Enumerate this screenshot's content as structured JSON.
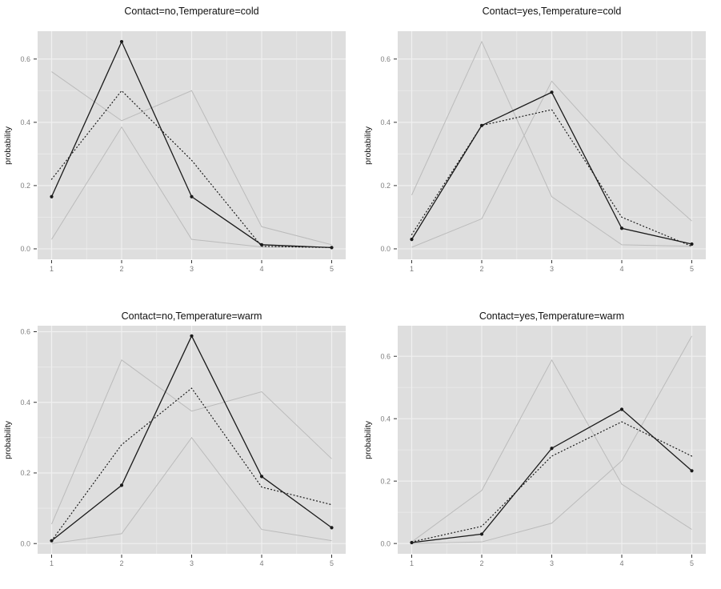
{
  "figure": {
    "background": "#ffffff",
    "rows": 2,
    "cols": 2,
    "description": "2x2 grid of ggplot-style probability line charts"
  },
  "colors": {
    "panel_bg": "#DEDEDE",
    "grid_major": "#F0F0F0",
    "grid_minor": "#E9E9E9",
    "axis_text": "#7E7E7E",
    "tick_mark": "#333333",
    "title_text": "#111111",
    "line_black": "#1A1A1A",
    "line_gray": "#BBBBBB"
  },
  "chart_data": [
    {
      "type": "line",
      "title": "Contact=no,Temperature=cold",
      "ylabel": "probability",
      "x": [
        1,
        2,
        3,
        4,
        5
      ],
      "xtick_labels": [
        "1",
        "2",
        "3",
        "4",
        "5"
      ],
      "ytick_values": [
        0.0,
        0.2,
        0.4,
        0.6
      ],
      "ytick_labels": [
        "0.0",
        "0.2",
        "0.4",
        "0.6"
      ],
      "ytick_minor": [
        0.1,
        0.3,
        0.5
      ],
      "xtick_minor": [
        1.5,
        2.5,
        3.5,
        4.5
      ],
      "xlim": [
        0.8,
        5.2
      ],
      "ylim": [
        -0.033,
        0.688
      ],
      "grid": true,
      "legend": "none",
      "series": [
        {
          "name": "individual-gray-1",
          "style": "gray",
          "values": [
            0.56,
            0.405,
            0.5,
            0.07,
            0.013
          ]
        },
        {
          "name": "individual-gray-2",
          "style": "gray",
          "values": [
            0.03,
            0.385,
            0.03,
            0.006,
            0.005
          ]
        },
        {
          "name": "dotted-line",
          "style": "dotted",
          "values": [
            0.22,
            0.5,
            0.28,
            0.008,
            0.004
          ]
        },
        {
          "name": "solid-line-with-points",
          "style": "solid-points",
          "values": [
            0.165,
            0.655,
            0.165,
            0.013,
            0.004
          ]
        }
      ]
    },
    {
      "type": "line",
      "title": "Contact=yes,Temperature=cold",
      "ylabel": "probability",
      "x": [
        1,
        2,
        3,
        4,
        5
      ],
      "xtick_labels": [
        "1",
        "2",
        "3",
        "4",
        "5"
      ],
      "ytick_values": [
        0.0,
        0.2,
        0.4,
        0.6
      ],
      "ytick_labels": [
        "0.0",
        "0.2",
        "0.4",
        "0.6"
      ],
      "ytick_minor": [
        0.1,
        0.3,
        0.5
      ],
      "xtick_minor": [
        1.5,
        2.5,
        3.5,
        4.5
      ],
      "xlim": [
        0.8,
        5.2
      ],
      "ylim": [
        -0.033,
        0.688
      ],
      "grid": true,
      "legend": "none",
      "series": [
        {
          "name": "individual-gray-1",
          "style": "gray",
          "values": [
            0.17,
            0.655,
            0.165,
            0.013,
            0.008
          ]
        },
        {
          "name": "individual-gray-2",
          "style": "gray",
          "values": [
            0.005,
            0.095,
            0.53,
            0.285,
            0.088
          ]
        },
        {
          "name": "dotted-line",
          "style": "dotted",
          "values": [
            0.045,
            0.39,
            0.44,
            0.1,
            0.008
          ]
        },
        {
          "name": "solid-line-with-points",
          "style": "solid-points",
          "values": [
            0.03,
            0.39,
            0.495,
            0.065,
            0.015
          ]
        }
      ]
    },
    {
      "type": "line",
      "title": "Contact=no,Temperature=warm",
      "ylabel": "probability",
      "x": [
        1,
        2,
        3,
        4,
        5
      ],
      "xtick_labels": [
        "1",
        "2",
        "3",
        "4",
        "5"
      ],
      "ytick_values": [
        0.0,
        0.2,
        0.4,
        0.6
      ],
      "ytick_labels": [
        "0.0",
        "0.2",
        "0.4",
        "0.6"
      ],
      "ytick_minor": [
        0.1,
        0.3,
        0.5
      ],
      "xtick_minor": [
        1.5,
        2.5,
        3.5,
        4.5
      ],
      "xlim": [
        0.8,
        5.2
      ],
      "ylim": [
        -0.029,
        0.617
      ],
      "grid": true,
      "legend": "none",
      "series": [
        {
          "name": "individual-gray-1",
          "style": "gray",
          "values": [
            0.055,
            0.52,
            0.375,
            0.43,
            0.24
          ]
        },
        {
          "name": "individual-gray-2",
          "style": "gray",
          "values": [
            0.0,
            0.028,
            0.3,
            0.04,
            0.008
          ]
        },
        {
          "name": "dotted-line",
          "style": "dotted",
          "values": [
            0.008,
            0.28,
            0.44,
            0.16,
            0.11
          ]
        },
        {
          "name": "solid-line-with-points",
          "style": "solid-points",
          "values": [
            0.008,
            0.165,
            0.588,
            0.19,
            0.045
          ]
        }
      ]
    },
    {
      "type": "line",
      "title": "Contact=yes,Temperature=warm",
      "ylabel": "probability",
      "x": [
        1,
        2,
        3,
        4,
        5
      ],
      "xtick_labels": [
        "1",
        "2",
        "3",
        "4",
        "5"
      ],
      "ytick_values": [
        0.0,
        0.2,
        0.4,
        0.6
      ],
      "ytick_labels": [
        "0.0",
        "0.2",
        "0.4",
        "0.6"
      ],
      "ytick_minor": [
        0.1,
        0.3,
        0.5
      ],
      "xtick_minor": [
        1.5,
        2.5,
        3.5,
        4.5
      ],
      "xlim": [
        0.8,
        5.2
      ],
      "ylim": [
        -0.033,
        0.698
      ],
      "grid": true,
      "legend": "none",
      "series": [
        {
          "name": "individual-gray-1",
          "style": "gray",
          "values": [
            0.005,
            0.17,
            0.588,
            0.19,
            0.045
          ]
        },
        {
          "name": "individual-gray-2",
          "style": "gray",
          "values": [
            0.0,
            0.005,
            0.065,
            0.265,
            0.665
          ]
        },
        {
          "name": "dotted-line",
          "style": "dotted",
          "values": [
            0.005,
            0.055,
            0.28,
            0.39,
            0.28
          ]
        },
        {
          "name": "solid-line-with-points",
          "style": "solid-points",
          "values": [
            0.003,
            0.03,
            0.305,
            0.43,
            0.233
          ]
        }
      ]
    }
  ]
}
